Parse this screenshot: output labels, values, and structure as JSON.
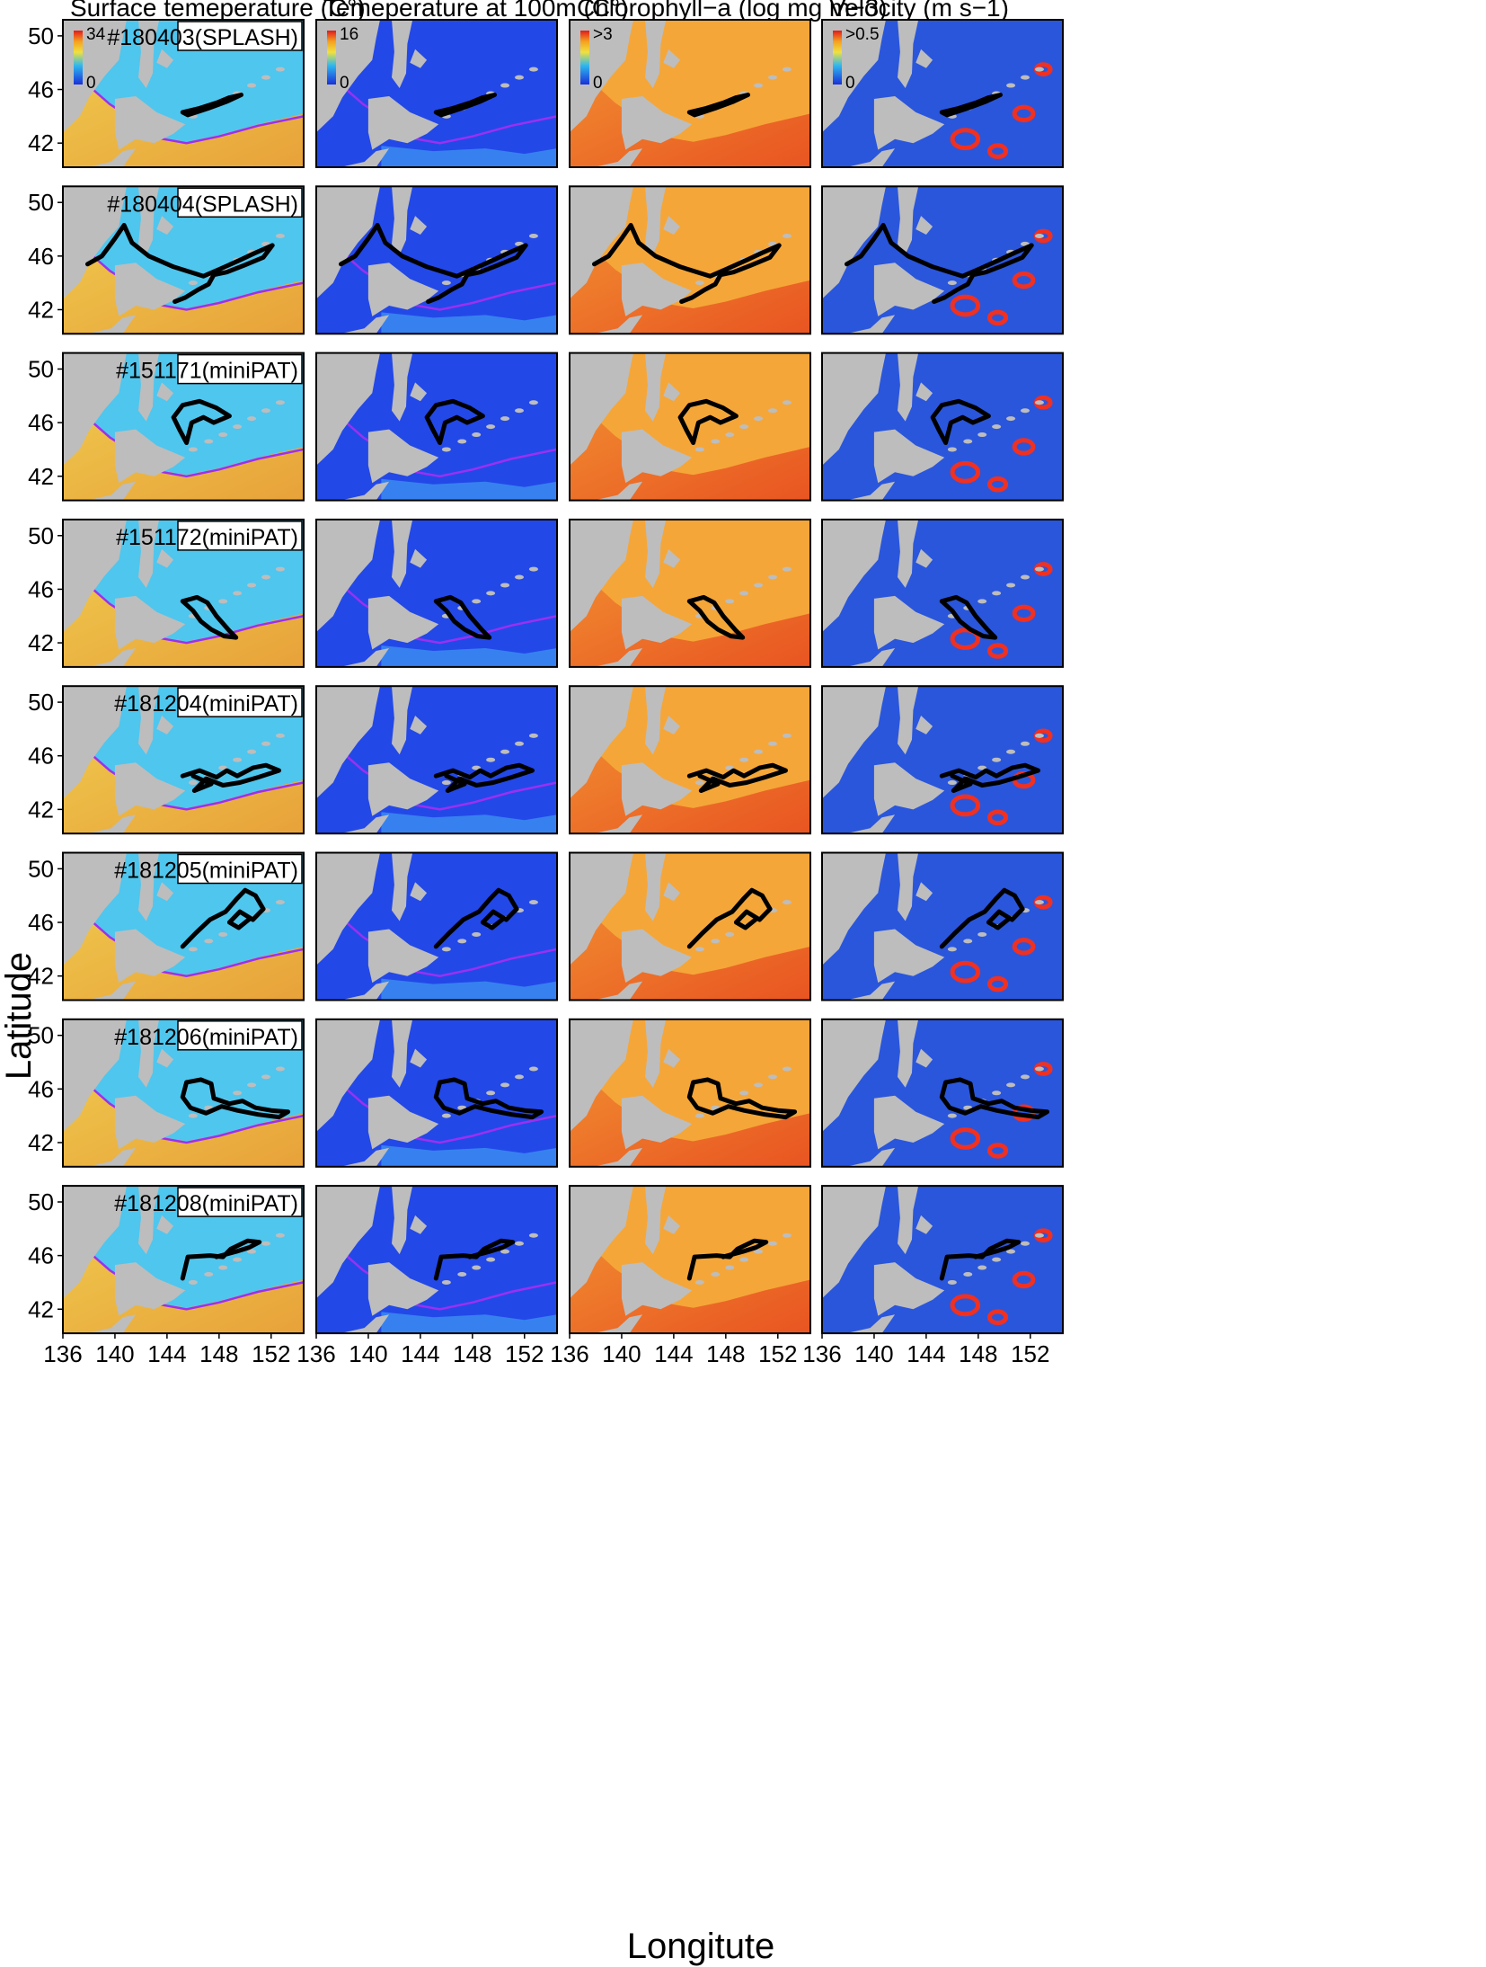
{
  "columns": [
    {
      "title": "Surface temeperature (C°)",
      "cbar_max": "34",
      "cbar_min": "0",
      "ramp": "sst",
      "base": "#4fc6ee"
    },
    {
      "title": "Temeperature at 100m (C°)",
      "cbar_max": "16",
      "cbar_min": "0",
      "ramp": "t100",
      "base": "#2348e8"
    },
    {
      "title": "Chlorophyll−a (log mg m−3)",
      "cbar_max": ">3",
      "cbar_min": "0",
      "ramp": "chl",
      "base": "#f5a638"
    },
    {
      "title": "Velocity (m s−1)",
      "cbar_max": ">0.5",
      "cbar_min": "0",
      "ramp": "vel",
      "base": "#2a56dc"
    }
  ],
  "rows": [
    {
      "tag": "#180403(SPLASH)",
      "track": [
        [
          145.2,
          44.3
        ],
        [
          146.5,
          44.6
        ],
        [
          147.8,
          45.0
        ],
        [
          148.8,
          45.4
        ],
        [
          149.7,
          45.6
        ],
        [
          148.6,
          45.1
        ],
        [
          147.2,
          44.6
        ],
        [
          145.6,
          44.1
        ],
        [
          145.2,
          44.3
        ]
      ]
    },
    {
      "tag": "#180404(SPLASH)",
      "track": [
        [
          137.9,
          45.4
        ],
        [
          139.0,
          46.0
        ],
        [
          140.0,
          47.3
        ],
        [
          140.7,
          48.3
        ],
        [
          141.3,
          47.0
        ],
        [
          142.6,
          46.0
        ],
        [
          144.5,
          45.2
        ],
        [
          146.8,
          44.5
        ],
        [
          148.0,
          45.0
        ],
        [
          149.6,
          45.7
        ],
        [
          150.7,
          46.2
        ],
        [
          152.1,
          46.8
        ],
        [
          151.4,
          45.9
        ],
        [
          149.9,
          45.3
        ],
        [
          148.6,
          44.8
        ],
        [
          147.6,
          44.6
        ],
        [
          147.2,
          43.9
        ],
        [
          146.4,
          43.5
        ],
        [
          145.4,
          42.9
        ],
        [
          144.6,
          42.6
        ]
      ]
    },
    {
      "tag": "#151171(miniPAT)",
      "track": [
        [
          145.5,
          44.5
        ],
        [
          145.0,
          45.4
        ],
        [
          144.5,
          46.4
        ],
        [
          145.2,
          47.3
        ],
        [
          146.5,
          47.6
        ],
        [
          147.8,
          47.1
        ],
        [
          148.8,
          46.5
        ],
        [
          147.6,
          46.0
        ],
        [
          146.8,
          46.4
        ],
        [
          145.9,
          46.0
        ],
        [
          145.5,
          44.5
        ]
      ]
    },
    {
      "tag": "#151172(miniPAT)",
      "track": [
        [
          145.2,
          45.1
        ],
        [
          146.3,
          45.4
        ],
        [
          147.1,
          45.0
        ],
        [
          147.8,
          44.0
        ],
        [
          148.7,
          43.0
        ],
        [
          149.3,
          42.4
        ],
        [
          148.4,
          42.5
        ],
        [
          147.4,
          43.0
        ],
        [
          146.6,
          43.6
        ],
        [
          146.0,
          44.4
        ],
        [
          145.2,
          45.1
        ]
      ]
    },
    {
      "tag": "#181204(miniPAT)",
      "track": [
        [
          145.2,
          44.5
        ],
        [
          146.5,
          44.9
        ],
        [
          147.8,
          44.4
        ],
        [
          148.6,
          44.9
        ],
        [
          149.4,
          44.5
        ],
        [
          150.6,
          45.1
        ],
        [
          151.6,
          45.3
        ],
        [
          152.6,
          44.9
        ],
        [
          151.0,
          44.4
        ],
        [
          149.6,
          44.0
        ],
        [
          148.3,
          43.8
        ],
        [
          147.0,
          44.3
        ],
        [
          146.1,
          43.4
        ],
        [
          147.4,
          43.9
        ],
        [
          146.0,
          44.5
        ]
      ]
    },
    {
      "tag": "#181205(miniPAT)",
      "track": [
        [
          145.2,
          44.2
        ],
        [
          146.2,
          45.2
        ],
        [
          147.3,
          46.2
        ],
        [
          148.5,
          46.8
        ],
        [
          149.4,
          47.8
        ],
        [
          150.0,
          48.4
        ],
        [
          150.8,
          48.0
        ],
        [
          151.4,
          47.0
        ],
        [
          150.6,
          46.2
        ],
        [
          149.6,
          46.8
        ],
        [
          148.8,
          46.0
        ],
        [
          149.5,
          45.6
        ],
        [
          150.4,
          46.3
        ]
      ]
    },
    {
      "tag": "#181206(miniPAT)",
      "track": [
        [
          145.5,
          46.5
        ],
        [
          146.6,
          46.7
        ],
        [
          147.4,
          46.4
        ],
        [
          147.6,
          45.3
        ],
        [
          148.8,
          44.9
        ],
        [
          149.8,
          45.1
        ],
        [
          150.8,
          44.6
        ],
        [
          152.0,
          44.4
        ],
        [
          153.3,
          44.3
        ],
        [
          152.6,
          43.9
        ],
        [
          151.0,
          44.1
        ],
        [
          149.4,
          44.4
        ],
        [
          148.2,
          44.7
        ],
        [
          147.0,
          44.2
        ],
        [
          145.8,
          44.6
        ],
        [
          145.2,
          45.4
        ],
        [
          145.5,
          46.5
        ]
      ]
    },
    {
      "tag": "#181208(miniPAT)",
      "track": [
        [
          145.2,
          44.3
        ],
        [
          145.6,
          45.9
        ],
        [
          147.3,
          46.0
        ],
        [
          148.3,
          45.9
        ],
        [
          148.9,
          46.5
        ],
        [
          150.2,
          47.1
        ],
        [
          151.1,
          47.0
        ],
        [
          150.3,
          46.6
        ],
        [
          149.3,
          46.3
        ],
        [
          147.8,
          45.9
        ]
      ]
    }
  ],
  "map": {
    "lon_ticks": [
      136,
      140,
      144,
      148,
      152
    ],
    "lat_ticks": [
      42,
      46,
      50
    ],
    "lon_range": [
      136,
      154.5
    ],
    "lat_range": [
      40.2,
      51.2
    ],
    "land_color": "#bdbdbd",
    "track_color": "#000000",
    "contour_color": "#9b30f0"
  },
  "labels": {
    "xlabel": "Longitute",
    "ylabel": "Latitude"
  }
}
